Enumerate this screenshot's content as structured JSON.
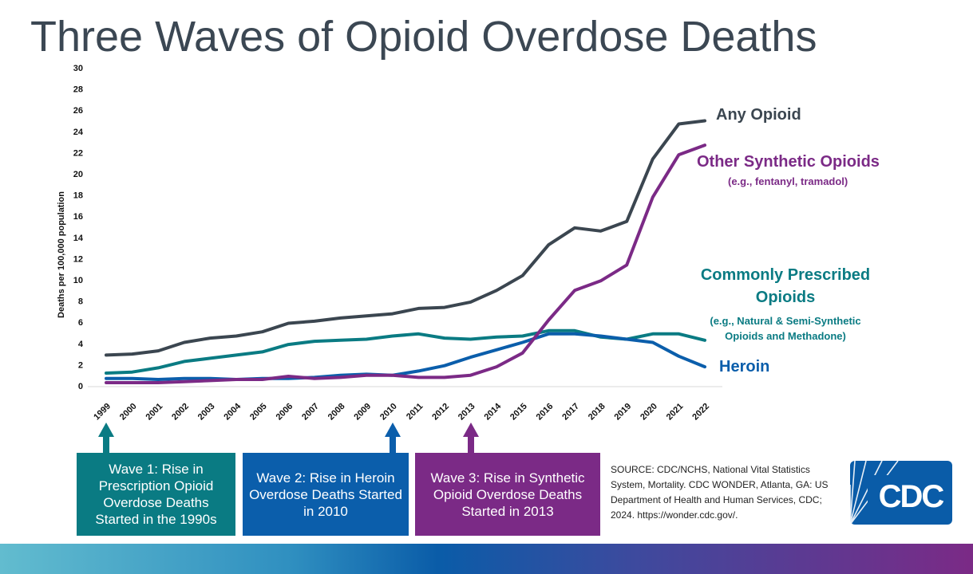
{
  "title": "Three Waves of Opioid Overdose Deaths",
  "chart_data": {
    "type": "line",
    "title": "",
    "xlabel": "",
    "ylabel": "Deaths per 100,000 population",
    "ylim": [
      0,
      30
    ],
    "yticks": [
      0,
      2,
      4,
      6,
      8,
      10,
      12,
      14,
      16,
      18,
      20,
      22,
      24,
      26,
      28,
      30
    ],
    "grid": false,
    "legend": "inline-right",
    "x": [
      "1999",
      "2000",
      "2001",
      "2002",
      "2003",
      "2004",
      "2005",
      "2006",
      "2007",
      "2008",
      "2009",
      "2010",
      "2011",
      "2012",
      "2013",
      "2014",
      "2015",
      "2016",
      "2017",
      "2018",
      "2019",
      "2020",
      "2021",
      "2022"
    ],
    "series": [
      {
        "name": "Any Opioid",
        "color": "#3b4650",
        "values": [
          2.9,
          3.0,
          3.3,
          4.1,
          4.5,
          4.7,
          5.1,
          5.9,
          6.1,
          6.4,
          6.6,
          6.8,
          7.3,
          7.4,
          7.9,
          9.0,
          10.4,
          13.3,
          14.9,
          14.6,
          15.5,
          21.4,
          24.7,
          25.0
        ]
      },
      {
        "name": "Other Synthetic Opioids",
        "subtitle": "(e.g., fentanyl, tramadol)",
        "color": "#7b2a86",
        "values": [
          0.3,
          0.3,
          0.3,
          0.4,
          0.5,
          0.6,
          0.6,
          0.9,
          0.7,
          0.8,
          1.0,
          1.0,
          0.8,
          0.8,
          1.0,
          1.8,
          3.1,
          6.2,
          9.0,
          9.9,
          11.4,
          17.8,
          21.8,
          22.7
        ]
      },
      {
        "name": "Commonly Prescribed Opioids",
        "subtitle": "(e.g., Natural & Semi-Synthetic Opioids and Methadone)",
        "color": "#0a7b83",
        "values": [
          1.2,
          1.3,
          1.7,
          2.3,
          2.6,
          2.9,
          3.2,
          3.9,
          4.2,
          4.3,
          4.4,
          4.7,
          4.9,
          4.5,
          4.4,
          4.6,
          4.7,
          5.2,
          5.2,
          4.6,
          4.4,
          4.9,
          4.9,
          4.3
        ]
      },
      {
        "name": "Heroin",
        "color": "#0b5eab",
        "values": [
          0.7,
          0.7,
          0.6,
          0.7,
          0.7,
          0.6,
          0.7,
          0.7,
          0.8,
          1.0,
          1.1,
          1.0,
          1.4,
          1.9,
          2.7,
          3.4,
          4.1,
          4.9,
          4.9,
          4.7,
          4.4,
          4.1,
          2.8,
          1.8
        ]
      }
    ]
  },
  "labels": {
    "any": "Any Opioid",
    "synthetic": "Other Synthetic Opioids",
    "synthetic_sub": "(e.g., fentanyl, tramadol)",
    "prescribed_1": "Commonly Prescribed",
    "prescribed_2": "Opioids",
    "prescribed_sub_1": "(e.g., Natural & Semi-Synthetic",
    "prescribed_sub_2": "Opioids and Methadone)",
    "heroin": "Heroin"
  },
  "waves": [
    {
      "text": "Wave 1: Rise in Prescription Opioid Overdose Deaths Started in the 1990s",
      "year": "1999",
      "color": "#0a7b83"
    },
    {
      "text": "Wave 2: Rise in Heroin Overdose Deaths Started in 2010",
      "year": "2010",
      "color": "#0b5eab"
    },
    {
      "text": "Wave 3: Rise in Synthetic Opioid Overdose Deaths Started in 2013",
      "year": "2013",
      "color": "#7b2a86"
    }
  ],
  "source": "SOURCE: CDC/NCHS, National Vital Statistics System, Mortality. CDC WONDER, Atlanta, GA: US Department of Health and Human Services, CDC; 2024. https://wonder.cdc.gov/.",
  "logo": "CDC"
}
